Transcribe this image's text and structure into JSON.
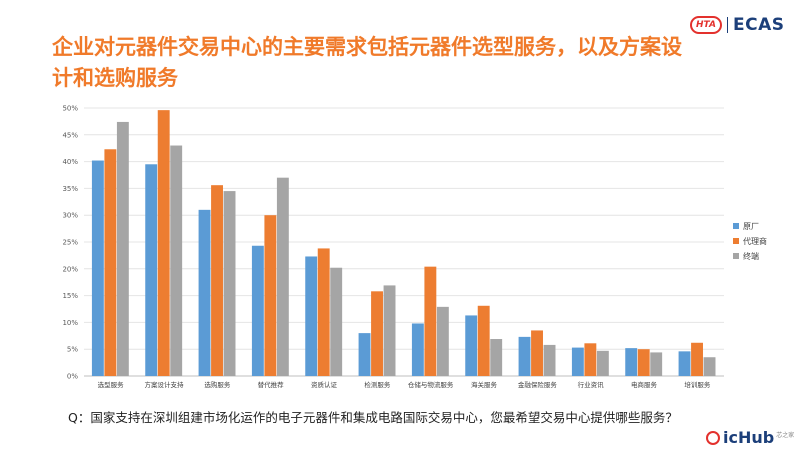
{
  "title": "企业对元器件交易中心的主要需求包括元器件选型服务，以及方案设计和选购服务",
  "logo": {
    "badge": "HTA",
    "text": "ECAS"
  },
  "question": "Q：国家支持在深圳组建市场化运作的电子元器件和集成电路国际交易中心，您最希望交易中心提供哪些服务？",
  "watermark": {
    "text": "icHub",
    "sub": "芯之家"
  },
  "colors": {
    "原厂": "#5b9bd5",
    "代理商": "#ed7d31",
    "终端": "#a5a5a5"
  },
  "chart_data": {
    "type": "bar",
    "title": "",
    "xlabel": "",
    "ylabel": "",
    "ylim": [
      0,
      50
    ],
    "yticks": [
      "0%",
      "5%",
      "10%",
      "15%",
      "20%",
      "25%",
      "30%",
      "35%",
      "40%",
      "45%",
      "50%"
    ],
    "categories": [
      "选型服务",
      "方案设计支持",
      "选购服务",
      "替代推荐",
      "资质认证",
      "检测服务",
      "仓储与物流服务",
      "海关服务",
      "金融保险服务",
      "行业资讯",
      "电商服务",
      "培训服务"
    ],
    "series": [
      {
        "name": "原厂",
        "values": [
          40.2,
          39.5,
          31.0,
          24.3,
          22.3,
          8.0,
          9.8,
          11.3,
          7.3,
          5.3,
          5.2,
          4.6
        ]
      },
      {
        "name": "代理商",
        "values": [
          42.3,
          49.6,
          35.6,
          30.0,
          23.8,
          15.8,
          20.4,
          13.1,
          8.5,
          6.1,
          5.0,
          6.2
        ]
      },
      {
        "name": "终端",
        "values": [
          47.4,
          43.0,
          34.5,
          37.0,
          20.2,
          16.9,
          12.9,
          6.9,
          5.8,
          4.7,
          4.4,
          3.5
        ]
      }
    ],
    "legend": "right",
    "grid": true
  }
}
